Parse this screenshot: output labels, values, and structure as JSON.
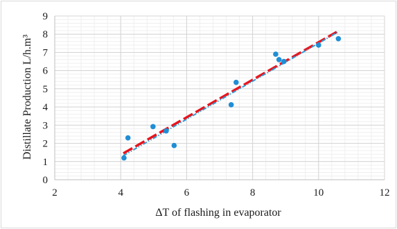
{
  "chart_data": {
    "type": "scatter",
    "title": "",
    "xlabel": "ΔT of flashing in evaporator",
    "ylabel": "Distillate Production L/h.m³",
    "xlim": [
      2,
      12
    ],
    "ylim": [
      0,
      9
    ],
    "x_ticks": [
      "2",
      "4",
      "6",
      "8",
      "10",
      "12"
    ],
    "y_ticks": [
      "0",
      "1",
      "2",
      "3",
      "4",
      "5",
      "6",
      "7",
      "8",
      "9"
    ],
    "grid": "major and minor",
    "legend": "none",
    "series": [
      {
        "kind": "points",
        "color": "#1f8ed6",
        "points": [
          {
            "x": 4.1,
            "y": 1.2
          },
          {
            "x": 4.22,
            "y": 2.3
          },
          {
            "x": 4.98,
            "y": 2.92
          },
          {
            "x": 5.38,
            "y": 2.68
          },
          {
            "x": 5.62,
            "y": 1.88
          },
          {
            "x": 7.35,
            "y": 4.12
          },
          {
            "x": 7.5,
            "y": 5.35
          },
          {
            "x": 8.7,
            "y": 6.9
          },
          {
            "x": 8.8,
            "y": 6.6
          },
          {
            "x": 8.95,
            "y": 6.5
          },
          {
            "x": 10.0,
            "y": 7.4
          },
          {
            "x": 10.6,
            "y": 7.75
          }
        ]
      },
      {
        "kind": "trendline",
        "color": "#e8141c",
        "style": "long dash",
        "points": [
          {
            "x": 4.08,
            "y": 1.45
          },
          {
            "x": 10.55,
            "y": 8.12
          }
        ]
      },
      {
        "kind": "trendline",
        "color": "#2e9ad6",
        "style": "dash dot dot",
        "points": [
          {
            "x": 4.08,
            "y": 1.32
          },
          {
            "x": 10.62,
            "y": 8.15
          }
        ]
      }
    ]
  }
}
